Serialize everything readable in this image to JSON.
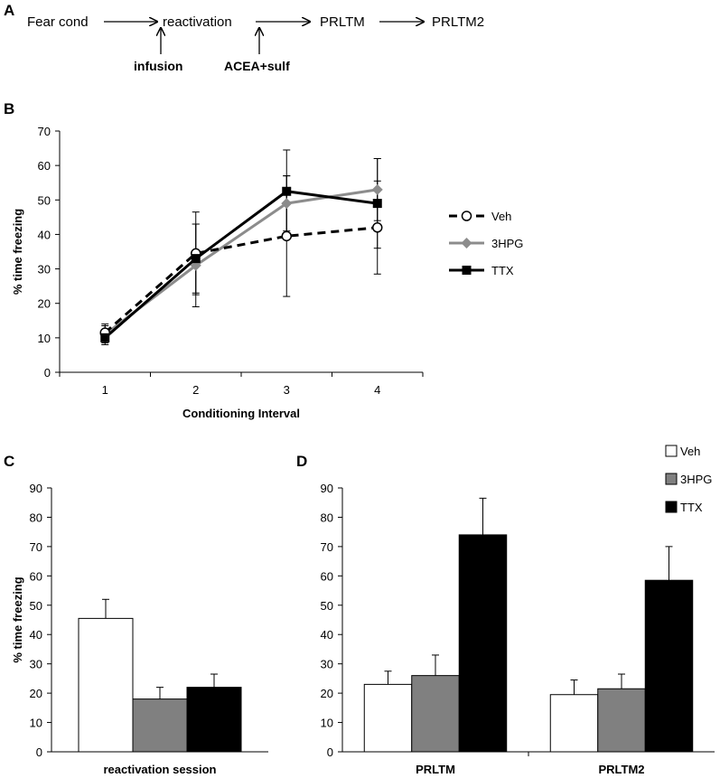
{
  "panel_a": {
    "letter": "A",
    "steps": [
      "Fear cond",
      "reactivation",
      "PRLTM",
      "PRLTM2"
    ],
    "arrows_up": [
      "infusion",
      "ACEA+sulf"
    ]
  },
  "chart_data": [
    {
      "panel": "B",
      "type": "line",
      "xlabel": "Conditioning Interval",
      "ylabel": "% time freezing",
      "x": [
        1,
        2,
        3,
        4
      ],
      "ylim": [
        0,
        70
      ],
      "yticks": [
        0,
        10,
        20,
        30,
        40,
        50,
        60,
        70
      ],
      "grid": false,
      "legend_position": "right",
      "series": [
        {
          "name": "Veh",
          "values": [
            11.5,
            34.5,
            39.5,
            42
          ],
          "errors": [
            2.5,
            12,
            17.5,
            13.5
          ],
          "color": "#000000",
          "style": "dashed",
          "marker": "circle-open"
        },
        {
          "name": "3HPG",
          "values": [
            11,
            31,
            49,
            53
          ],
          "errors": [
            2.5,
            12,
            8,
            9
          ],
          "color": "#8c8c8c",
          "style": "solid",
          "marker": "diamond"
        },
        {
          "name": "TTX",
          "values": [
            10,
            33,
            52.5,
            49
          ],
          "errors": [
            2,
            10,
            12,
            13
          ],
          "color": "#000000",
          "style": "solid",
          "marker": "square"
        }
      ]
    },
    {
      "panel": "C",
      "type": "bar",
      "ylabel": "% time freezing",
      "categories": [
        "reactivation session"
      ],
      "ylim": [
        0,
        90
      ],
      "yticks": [
        0,
        10,
        20,
        30,
        40,
        50,
        60,
        70,
        80,
        90
      ],
      "series": [
        {
          "name": "Veh",
          "values": [
            45.5
          ],
          "errors": [
            6.5
          ],
          "color": "#ffffff"
        },
        {
          "name": "3HPG",
          "values": [
            18
          ],
          "errors": [
            4
          ],
          "color": "#808080"
        },
        {
          "name": "TTX",
          "values": [
            22
          ],
          "errors": [
            4.5
          ],
          "color": "#000000"
        }
      ]
    },
    {
      "panel": "D",
      "type": "bar",
      "categories": [
        "PRLTM",
        "PRLTM2"
      ],
      "ylim": [
        0,
        90
      ],
      "yticks": [
        0,
        10,
        20,
        30,
        40,
        50,
        60,
        70,
        80,
        90
      ],
      "legend_position": "top-right",
      "series": [
        {
          "name": "Veh",
          "values": [
            23,
            19.5
          ],
          "errors": [
            4.5,
            5
          ],
          "color": "#ffffff"
        },
        {
          "name": "3HPG",
          "values": [
            26,
            21.5
          ],
          "errors": [
            7,
            5
          ],
          "color": "#808080"
        },
        {
          "name": "TTX",
          "values": [
            74,
            58.5
          ],
          "errors": [
            12.5,
            11.5
          ],
          "color": "#000000"
        }
      ]
    }
  ]
}
